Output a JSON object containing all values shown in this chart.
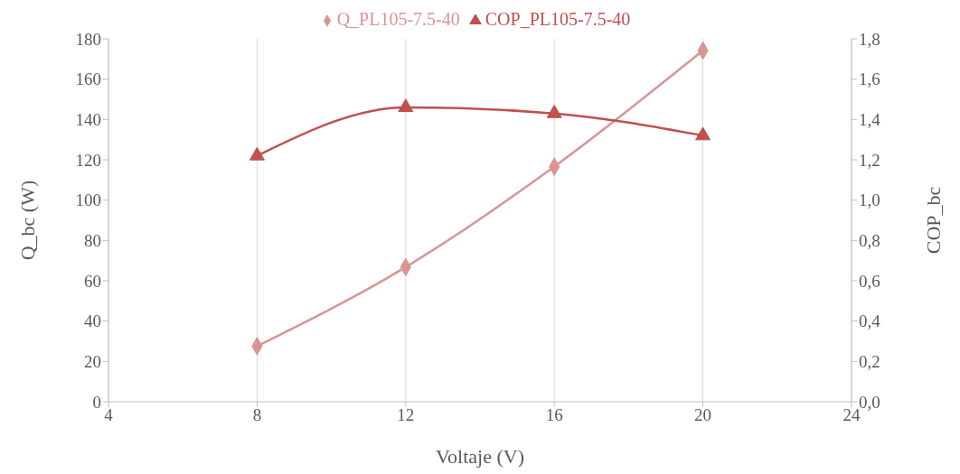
{
  "chart_data": {
    "type": "line",
    "xlabel": "Voltaje (V)",
    "ylabel": "Q_bc (W)",
    "y2label": "COP_bc",
    "x": [
      8,
      12,
      16,
      20
    ],
    "series": [
      {
        "name": "Q_PL105-7.5-40",
        "color": "#d99594",
        "marker": "diamond",
        "values": [
          27.6,
          66.8,
          116.6,
          174.2
        ]
      },
      {
        "name": "COP_PL105-7.5-40",
        "color": "#c0504d",
        "marker": "triangle",
        "axis": "y2",
        "values": [
          1.22,
          1.46,
          1.43,
          1.32
        ]
      }
    ],
    "xlim": [
      4,
      24
    ],
    "xticks": [
      4,
      8,
      12,
      16,
      20,
      24
    ],
    "ylim": [
      0,
      180
    ],
    "yticks": [
      0,
      20,
      40,
      60,
      80,
      100,
      120,
      140,
      160,
      180
    ],
    "y2lim": [
      0,
      1.8
    ],
    "y2ticks": [
      {
        "value": 0,
        "label": "0,0"
      },
      {
        "value": 0.2,
        "label": "0,2"
      },
      {
        "value": 0.4,
        "label": "0,4"
      },
      {
        "value": 0.6,
        "label": "0,6"
      },
      {
        "value": 0.8,
        "label": "0,8"
      },
      {
        "value": 1,
        "label": "1,0"
      },
      {
        "value": 1.2,
        "label": "1,2"
      },
      {
        "value": 1.4,
        "label": "1,4"
      },
      {
        "value": 1.6,
        "label": "1,6"
      },
      {
        "value": 1.8,
        "label": "1,8"
      }
    ],
    "grid": "x",
    "legend": "top"
  }
}
